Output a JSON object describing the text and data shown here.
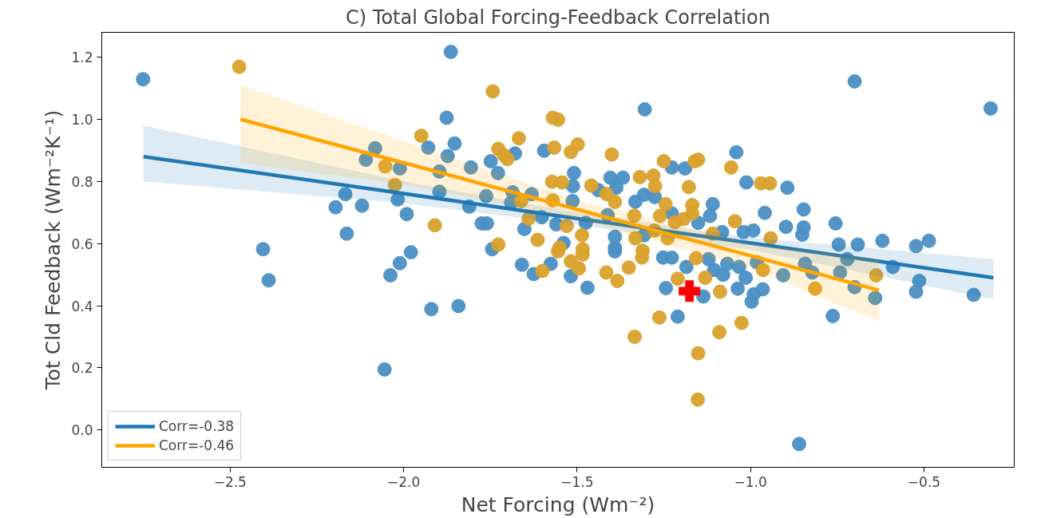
{
  "chart_data": {
    "type": "scatter",
    "title": "C) Total Global Forcing-Feedback Correlation",
    "xlabel": "Net Forcing (Wm⁻²)",
    "ylabel": "Tot Cld Feedback (Wm⁻²K⁻¹)",
    "xlim": [
      -2.87,
      -0.24
    ],
    "ylim": [
      -0.12,
      1.28
    ],
    "xticks": [
      {
        "value": -2.5,
        "label": "−2.5"
      },
      {
        "value": -2.0,
        "label": "−2.0"
      },
      {
        "value": -1.5,
        "label": "−1.5"
      },
      {
        "value": -1.0,
        "label": "−1.0"
      },
      {
        "value": -0.5,
        "label": "−0.5"
      }
    ],
    "yticks": [
      {
        "value": 0,
        "label": "0.0"
      },
      {
        "value": 0.2,
        "label": "0.2"
      },
      {
        "value": 0.4,
        "label": "0.4"
      },
      {
        "value": 0.6,
        "label": "0.6"
      },
      {
        "value": 0.8,
        "label": "0.8"
      },
      {
        "value": 1.0,
        "label": "1.0"
      },
      {
        "value": 1.2,
        "label": "1.2"
      }
    ],
    "grid": false,
    "legend": "bottom left",
    "series": [
      {
        "color": "#4a8fc4",
        "marker": "circle",
        "x": [
          -2.751,
          -1.864,
          -1.876,
          -2.082,
          -2.109,
          -2.011,
          -1.929,
          -1.853,
          -1.873,
          -1.897,
          -1.806,
          -1.749,
          -1.728,
          -1.679,
          -1.595,
          -2.168,
          -2.196,
          -2.12,
          -2.017,
          -1.991,
          -1.897,
          -1.811,
          -1.762,
          -1.775,
          -1.76,
          -1.686,
          -1.69,
          -1.631,
          -1.602,
          -1.652,
          -1.56,
          -2.164,
          -2.405,
          -1.979,
          -1.745,
          -2.389,
          -2.011,
          -2.038,
          -1.92,
          -1.842,
          -2.055,
          -1.659,
          -1.625,
          -1.576,
          -1.305,
          -0.7,
          -0.308,
          -1.041,
          -1.227,
          -1.189,
          -1.012,
          -0.894,
          -1.509,
          -1.512,
          -1.404,
          -1.368,
          -1.387,
          -1.439,
          -1.332,
          -1.307,
          -1.276,
          -1.109,
          -1.117,
          -0.959,
          -0.847,
          -0.755,
          -0.898,
          -0.847,
          -0.851,
          -0.62,
          -0.486,
          -0.523,
          -0.746,
          -0.691,
          -1.02,
          -0.992,
          -1.082,
          -1.151,
          -1.227,
          -1.391,
          -1.391,
          -1.513,
          -1.475,
          -1.539,
          -1.412,
          -1.307,
          -1.47,
          -1.391,
          -1.518,
          -1.244,
          -1.185,
          -1.252,
          -1.227,
          -1.136,
          -1.21,
          -1.105,
          -1.079,
          -1.037,
          -1.014,
          -0.991,
          -0.997,
          -0.965,
          -1.067,
          -1.033,
          -0.982,
          -0.906,
          -0.843,
          -0.822,
          -0.742,
          -0.7,
          -0.763,
          -0.86,
          -0.641,
          -0.59,
          -0.523,
          -0.514,
          -0.357,
          -0.721,
          -1.121
        ],
        "values": [
          1.129,
          1.217,
          1.005,
          0.907,
          0.87,
          0.842,
          0.909,
          0.922,
          0.882,
          0.832,
          0.845,
          0.865,
          0.827,
          0.89,
          0.899,
          0.759,
          0.717,
          0.722,
          0.742,
          0.695,
          0.767,
          0.719,
          0.753,
          0.665,
          0.665,
          0.765,
          0.732,
          0.759,
          0.685,
          0.647,
          0.662,
          0.632,
          0.582,
          0.572,
          0.582,
          0.482,
          0.537,
          0.498,
          0.389,
          0.399,
          0.195,
          0.532,
          0.502,
          0.535,
          1.032,
          1.122,
          1.035,
          0.894,
          0.845,
          0.842,
          0.797,
          0.78,
          0.827,
          0.785,
          0.812,
          0.812,
          0.78,
          0.772,
          0.735,
          0.757,
          0.75,
          0.727,
          0.689,
          0.699,
          0.71,
          0.665,
          0.654,
          0.652,
          0.629,
          0.609,
          0.609,
          0.592,
          0.597,
          0.597,
          0.637,
          0.642,
          0.637,
          0.667,
          0.697,
          0.622,
          0.587,
          0.737,
          0.667,
          0.602,
          0.692,
          0.627,
          0.458,
          0.575,
          0.495,
          0.457,
          0.525,
          0.555,
          0.555,
          0.43,
          0.365,
          0.515,
          0.5,
          0.455,
          0.49,
          0.437,
          0.413,
          0.453,
          0.535,
          0.525,
          0.54,
          0.498,
          0.535,
          0.507,
          0.507,
          0.46,
          0.367,
          -0.045,
          0.425,
          0.525,
          0.445,
          0.48,
          0.435,
          0.55,
          0.55
        ]
      },
      {
        "color": "#d9a12b",
        "marker": "circle",
        "x": [
          -2.474,
          -1.743,
          -1.949,
          -1.668,
          -1.727,
          -1.711,
          -1.701,
          -2.053,
          -2.025,
          -1.57,
          -1.555,
          -1.566,
          -1.572,
          -1.57,
          -1.661,
          -1.64,
          -1.91,
          -1.614,
          -1.727,
          -1.6,
          -1.555,
          -1.498,
          -1.518,
          -1.4,
          -1.25,
          -1.151,
          -1.161,
          -1.056,
          -0.97,
          -0.944,
          -1.319,
          -1.28,
          -1.275,
          -1.459,
          -1.543,
          -1.178,
          -1.416,
          -1.391,
          -1.245,
          -1.168,
          -1.168,
          -1.335,
          -1.261,
          -1.193,
          -1.218,
          -1.045,
          -1.53,
          -1.486,
          -1.332,
          -1.239,
          -1.277,
          -0.942,
          -1.551,
          -1.484,
          -1.109,
          -1.311,
          -1.484,
          -1.518,
          -1.495,
          -1.416,
          -1.384,
          -1.351,
          -1.313,
          -1.21,
          -1.131,
          -1.157,
          -1.088,
          -0.964,
          -0.814,
          -0.638,
          -1.263,
          -1.334,
          -1.09,
          -1.026,
          -1.151,
          -1.152
        ],
        "values": [
          1.169,
          1.09,
          0.947,
          0.939,
          0.905,
          0.885,
          0.872,
          0.849,
          0.789,
          1.005,
          0.999,
          0.909,
          0.799,
          0.739,
          0.737,
          0.68,
          0.659,
          0.612,
          0.597,
          0.512,
          0.575,
          0.919,
          0.895,
          0.887,
          0.865,
          0.87,
          0.865,
          0.845,
          0.794,
          0.794,
          0.814,
          0.819,
          0.785,
          0.787,
          0.797,
          0.782,
          0.76,
          0.734,
          0.727,
          0.724,
          0.697,
          0.69,
          0.689,
          0.679,
          0.669,
          0.672,
          0.657,
          0.627,
          0.617,
          0.617,
          0.642,
          0.617,
          0.587,
          0.582,
          0.632,
          0.577,
          0.565,
          0.543,
          0.52,
          0.507,
          0.48,
          0.523,
          0.555,
          0.487,
          0.49,
          0.553,
          0.445,
          0.515,
          0.455,
          0.498,
          0.362,
          0.3,
          0.315,
          0.345,
          0.247,
          0.098
        ]
      },
      {
        "type": "line",
        "name": "Corr=-0.38",
        "color": "#1f77b4",
        "x": [
          -2.75,
          -2.0,
          -1.5,
          -1.0,
          -0.3
        ],
        "values": [
          0.88,
          0.761,
          0.681,
          0.602,
          0.49
        ],
        "lower": [
          0.8,
          0.73,
          0.66,
          0.58,
          0.42
        ],
        "upper": [
          0.98,
          0.8,
          0.7,
          0.62,
          0.55
        ]
      },
      {
        "type": "line",
        "name": "Corr=-0.46",
        "color": "#ffa500",
        "x": [
          -2.47,
          -2.0,
          -1.5,
          -1.0,
          -0.63
        ],
        "values": [
          1.0,
          0.86,
          0.71,
          0.561,
          0.45
        ],
        "lower": [
          0.86,
          0.79,
          0.68,
          0.52,
          0.35
        ],
        "upper": [
          1.11,
          0.93,
          0.74,
          0.6,
          0.55
        ]
      },
      {
        "color": "#ff0000",
        "marker": "cross",
        "x": [
          -1.176
        ],
        "values": [
          0.447
        ]
      }
    ]
  }
}
